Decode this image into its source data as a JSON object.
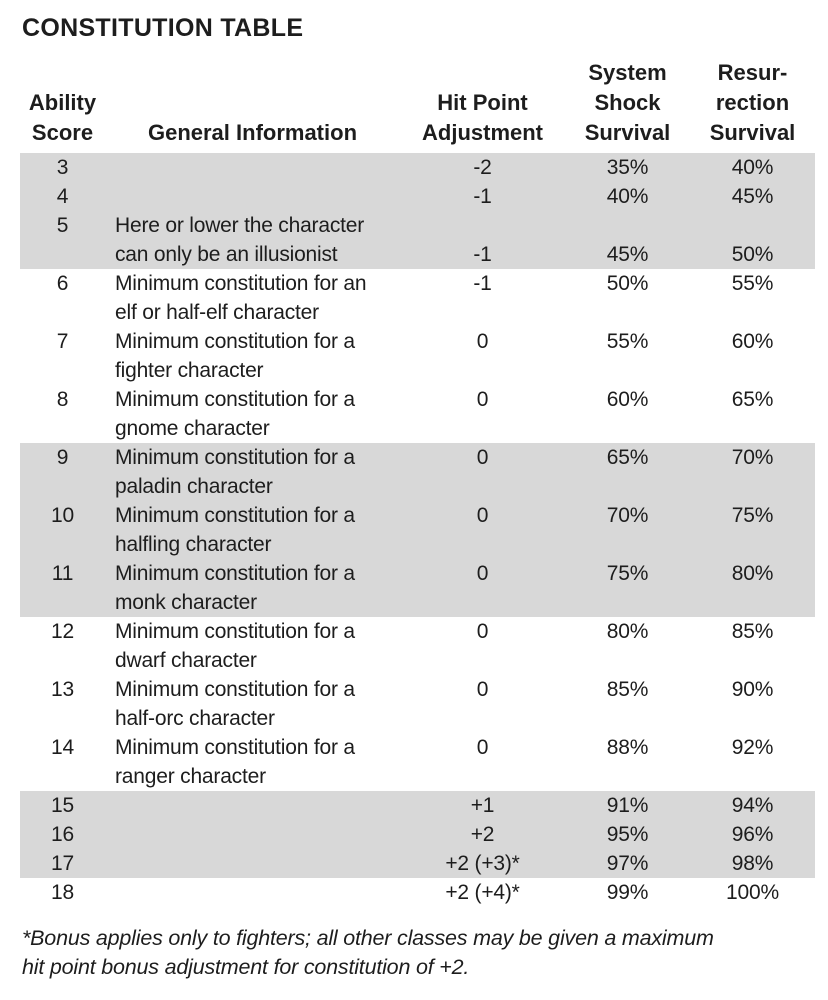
{
  "title": "CONSTITUTION TABLE",
  "colors": {
    "shaded_row_bg": "#d8d8d8",
    "text": "#1d1d1d",
    "page_bg": "#ffffff"
  },
  "table": {
    "columns": [
      {
        "id": "score",
        "header_lines": [
          "",
          "Ability",
          "Score"
        ]
      },
      {
        "id": "info",
        "header_lines": [
          "",
          "",
          "General Information"
        ]
      },
      {
        "id": "adj",
        "header_lines": [
          "",
          "Hit Point",
          "Adjustment"
        ]
      },
      {
        "id": "shock",
        "header_lines": [
          "System",
          "Shock",
          "Survival"
        ]
      },
      {
        "id": "res",
        "header_lines": [
          "Resur-",
          "rection",
          "Survival"
        ]
      }
    ],
    "rows": [
      {
        "score": "3",
        "info_lines": [],
        "adj": "-2",
        "shock": "35%",
        "res": "40%",
        "values_on_line": 1,
        "shaded": true
      },
      {
        "score": "4",
        "info_lines": [],
        "adj": "-1",
        "shock": "40%",
        "res": "45%",
        "values_on_line": 1,
        "shaded": true
      },
      {
        "score": "5",
        "info_lines": [
          "Here or lower the character",
          "can only be an illusionist"
        ],
        "adj": "-1",
        "shock": "45%",
        "res": "50%",
        "values_on_line": 2,
        "shaded": true
      },
      {
        "score": "6",
        "info_lines": [
          "Minimum constitution for an",
          "elf or half-elf character"
        ],
        "adj": "-1",
        "shock": "50%",
        "res": "55%",
        "values_on_line": 1,
        "shaded": false
      },
      {
        "score": "7",
        "info_lines": [
          "Minimum constitution for a",
          "fighter character"
        ],
        "adj": "0",
        "shock": "55%",
        "res": "60%",
        "values_on_line": 1,
        "shaded": false
      },
      {
        "score": "8",
        "info_lines": [
          "Minimum constitution for a",
          "gnome character"
        ],
        "adj": "0",
        "shock": "60%",
        "res": "65%",
        "values_on_line": 1,
        "shaded": false
      },
      {
        "score": "9",
        "info_lines": [
          "Minimum constitution for a",
          "paladin character"
        ],
        "adj": "0",
        "shock": "65%",
        "res": "70%",
        "values_on_line": 1,
        "shaded": true
      },
      {
        "score": "10",
        "info_lines": [
          "Minimum constitution for a",
          "halfling character"
        ],
        "adj": "0",
        "shock": "70%",
        "res": "75%",
        "values_on_line": 1,
        "shaded": true
      },
      {
        "score": "11",
        "info_lines": [
          "Minimum constitution for a",
          "monk character"
        ],
        "adj": "0",
        "shock": "75%",
        "res": "80%",
        "values_on_line": 1,
        "shaded": true
      },
      {
        "score": "12",
        "info_lines": [
          "Minimum constitution for a",
          "dwarf character"
        ],
        "adj": "0",
        "shock": "80%",
        "res": "85%",
        "values_on_line": 1,
        "shaded": false
      },
      {
        "score": "13",
        "info_lines": [
          "Minimum constitution for a",
          "half-orc character"
        ],
        "adj": "0",
        "shock": "85%",
        "res": "90%",
        "values_on_line": 1,
        "shaded": false
      },
      {
        "score": "14",
        "info_lines": [
          "Minimum constitution for a",
          "ranger character"
        ],
        "adj": "0",
        "shock": "88%",
        "res": "92%",
        "values_on_line": 1,
        "shaded": false
      },
      {
        "score": "15",
        "info_lines": [],
        "adj": "+1",
        "shock": "91%",
        "res": "94%",
        "values_on_line": 1,
        "shaded": true
      },
      {
        "score": "16",
        "info_lines": [],
        "adj": "+2",
        "shock": "95%",
        "res": "96%",
        "values_on_line": 1,
        "shaded": true
      },
      {
        "score": "17",
        "info_lines": [],
        "adj": "+2 (+3)*",
        "shock": "97%",
        "res": "98%",
        "values_on_line": 1,
        "shaded": true
      },
      {
        "score": "18",
        "info_lines": [],
        "adj": "+2 (+4)*",
        "shock": "99%",
        "res": "100%",
        "values_on_line": 1,
        "shaded": false
      }
    ]
  },
  "footnote_lines": [
    "*Bonus applies only to fighters; all other classes may be given a maximum",
    "hit point bonus adjustment for constitution of +2."
  ]
}
